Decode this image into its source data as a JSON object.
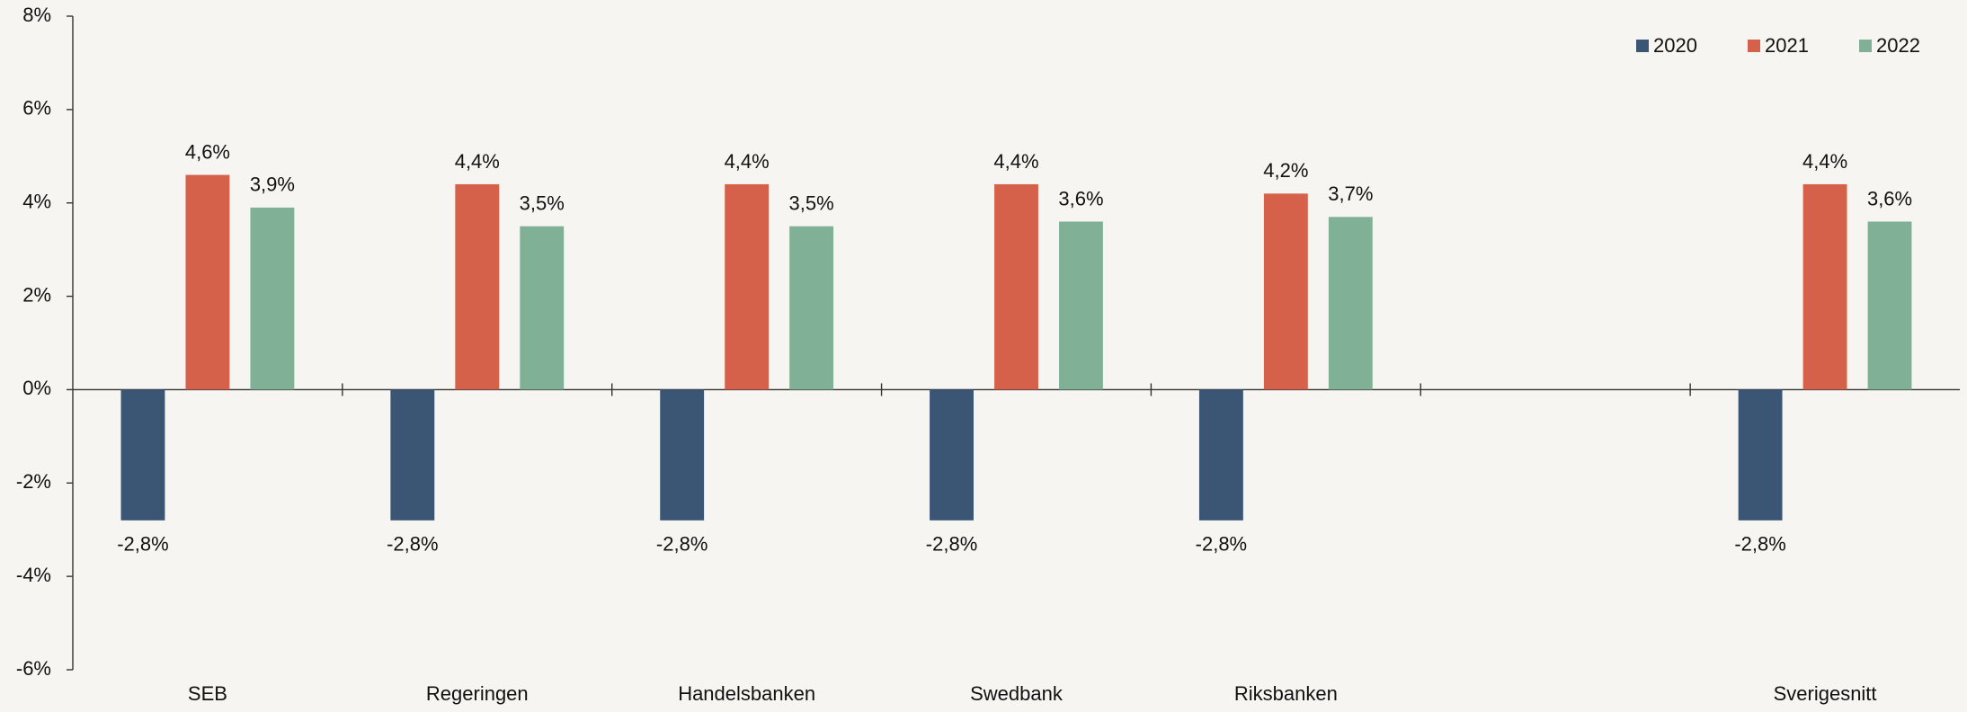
{
  "chart_data": {
    "type": "bar",
    "categories": [
      "SEB",
      "Regeringen",
      "Handelsbanken",
      "Swedbank",
      "Riksbanken",
      null,
      "Sverigesnitt"
    ],
    "series": [
      {
        "name": "2020",
        "color": "#3b5675",
        "values": [
          -2.8,
          -2.8,
          -2.8,
          -2.8,
          -2.8,
          null,
          -2.8
        ],
        "value_labels": [
          "-2,8%",
          "-2,8%",
          "-2,8%",
          "-2,8%",
          "-2,8%",
          null,
          "-2,8%"
        ]
      },
      {
        "name": "2021",
        "color": "#d6614a",
        "values": [
          4.6,
          4.4,
          4.4,
          4.4,
          4.2,
          null,
          4.4
        ],
        "value_labels": [
          "4,6%",
          "4,4%",
          "4,4%",
          "4,4%",
          "4,2%",
          null,
          "4,4%"
        ]
      },
      {
        "name": "2022",
        "color": "#80b095",
        "values": [
          3.9,
          3.5,
          3.5,
          3.6,
          3.7,
          null,
          3.6
        ],
        "value_labels": [
          "3,9%",
          "3,5%",
          "3,5%",
          "3,6%",
          "3,7%",
          null,
          "3,6%"
        ]
      }
    ],
    "ylim": [
      -6,
      8
    ],
    "yticks": [
      {
        "value": -6,
        "label": "-6%"
      },
      {
        "value": -4,
        "label": "-4%"
      },
      {
        "value": -2,
        "label": "-2%"
      },
      {
        "value": 0,
        "label": "0%"
      },
      {
        "value": 2,
        "label": "2%"
      },
      {
        "value": 4,
        "label": "4%"
      },
      {
        "value": 6,
        "label": "6%"
      },
      {
        "value": 8,
        "label": "8%"
      }
    ],
    "legend": "top-right"
  }
}
